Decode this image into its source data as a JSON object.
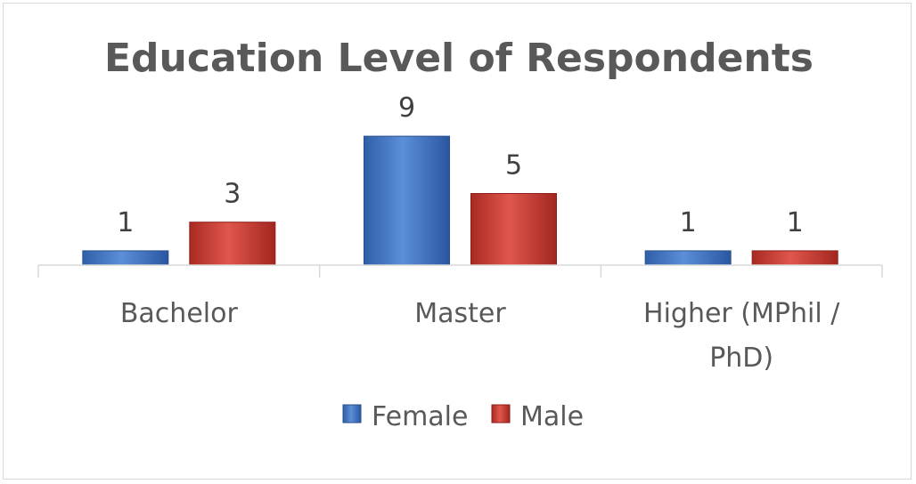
{
  "chart_data": {
    "type": "bar",
    "title": "Education Level of Respondents",
    "categories": [
      [
        "Bachelor"
      ],
      [
        "Master"
      ],
      [
        "Higher (MPhil /",
        "PhD)"
      ]
    ],
    "series": [
      {
        "name": "Female",
        "values": [
          1,
          9,
          1
        ],
        "color": "#4472c4"
      },
      {
        "name": "Male",
        "values": [
          3,
          5,
          1
        ],
        "color": "#c0392b"
      }
    ],
    "ylim": [
      0,
      9
    ],
    "grid": false,
    "legend": "bottom"
  }
}
